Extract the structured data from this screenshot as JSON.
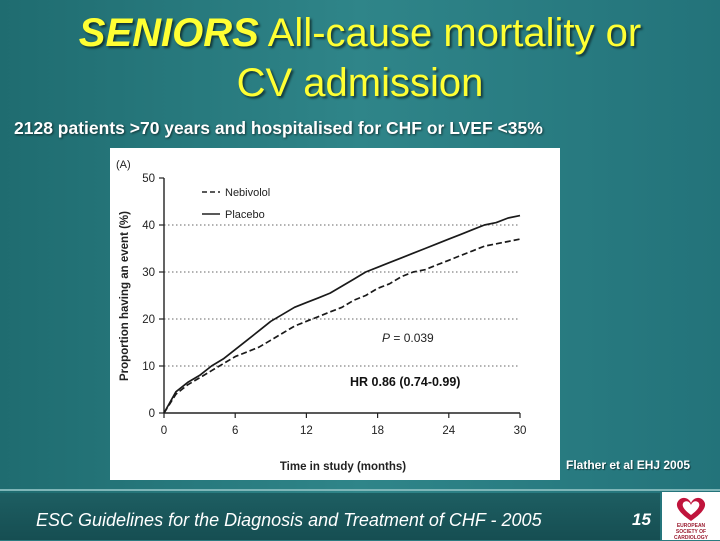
{
  "slide": {
    "title_emphasis": "SENIORS",
    "title_line1_rest": " All-cause mortality or",
    "title_line2": "CV admission",
    "subtitle": "2128 patients >70 years and hospitalised for CHF or LVEF <35%",
    "citation": "Flather et al EHJ 2005",
    "footer_text": "ESC Guidelines for the Diagnosis and Treatment of CHF - 2005",
    "page_number": "15",
    "logo_text_1": "EUROPEAN",
    "logo_text_2": "SOCIETY OF",
    "logo_text_3": "CARDIOLOGY",
    "colors": {
      "title": "#ffff33",
      "background": "#2b7b80",
      "footer": "#164e52"
    }
  },
  "chart_data": {
    "type": "line",
    "panel_label": "(A)",
    "xlabel": "Time in study (months)",
    "ylabel": "Proportion having an event (%)",
    "xlim": [
      0,
      30
    ],
    "ylim": [
      0,
      50
    ],
    "xticks": [
      0,
      6,
      12,
      18,
      24,
      30
    ],
    "yticks": [
      0,
      10,
      20,
      30,
      40,
      50
    ],
    "grid": "dotted horizontal at 10, 20, 30, 40",
    "legend_position": "top-left",
    "series": [
      {
        "name": "Nebivolol",
        "style": "dashed",
        "x": [
          0,
          1,
          2,
          3,
          4,
          5,
          6,
          7,
          8,
          9,
          10,
          11,
          12,
          13,
          14,
          15,
          16,
          17,
          18,
          19,
          20,
          21,
          22,
          23,
          24,
          25,
          26,
          27,
          28,
          29,
          30
        ],
        "y": [
          0,
          4,
          6,
          7.5,
          9,
          10.5,
          12,
          13,
          14,
          15.5,
          17,
          18.5,
          19.5,
          20.5,
          21.5,
          22.5,
          24,
          25,
          26.5,
          27.5,
          29,
          30,
          30.5,
          31.5,
          32.5,
          33.5,
          34.5,
          35.5,
          36,
          36.5,
          37
        ]
      },
      {
        "name": "Placebo",
        "style": "solid",
        "x": [
          0,
          1,
          2,
          3,
          4,
          5,
          6,
          7,
          8,
          9,
          10,
          11,
          12,
          13,
          14,
          15,
          16,
          17,
          18,
          19,
          20,
          21,
          22,
          23,
          24,
          25,
          26,
          27,
          28,
          29,
          30
        ],
        "y": [
          0,
          4.5,
          6.5,
          8,
          10,
          11.5,
          13.5,
          15.5,
          17.5,
          19.5,
          21,
          22.5,
          23.5,
          24.5,
          25.5,
          27,
          28.5,
          30,
          31,
          32,
          33,
          34,
          35,
          36,
          37,
          38,
          39,
          40,
          40.5,
          41.5,
          42
        ]
      }
    ],
    "annotations": {
      "p_label": "P",
      "p_value": " = 0.039",
      "hr": "HR 0.86 (0.74-0.99)"
    }
  }
}
